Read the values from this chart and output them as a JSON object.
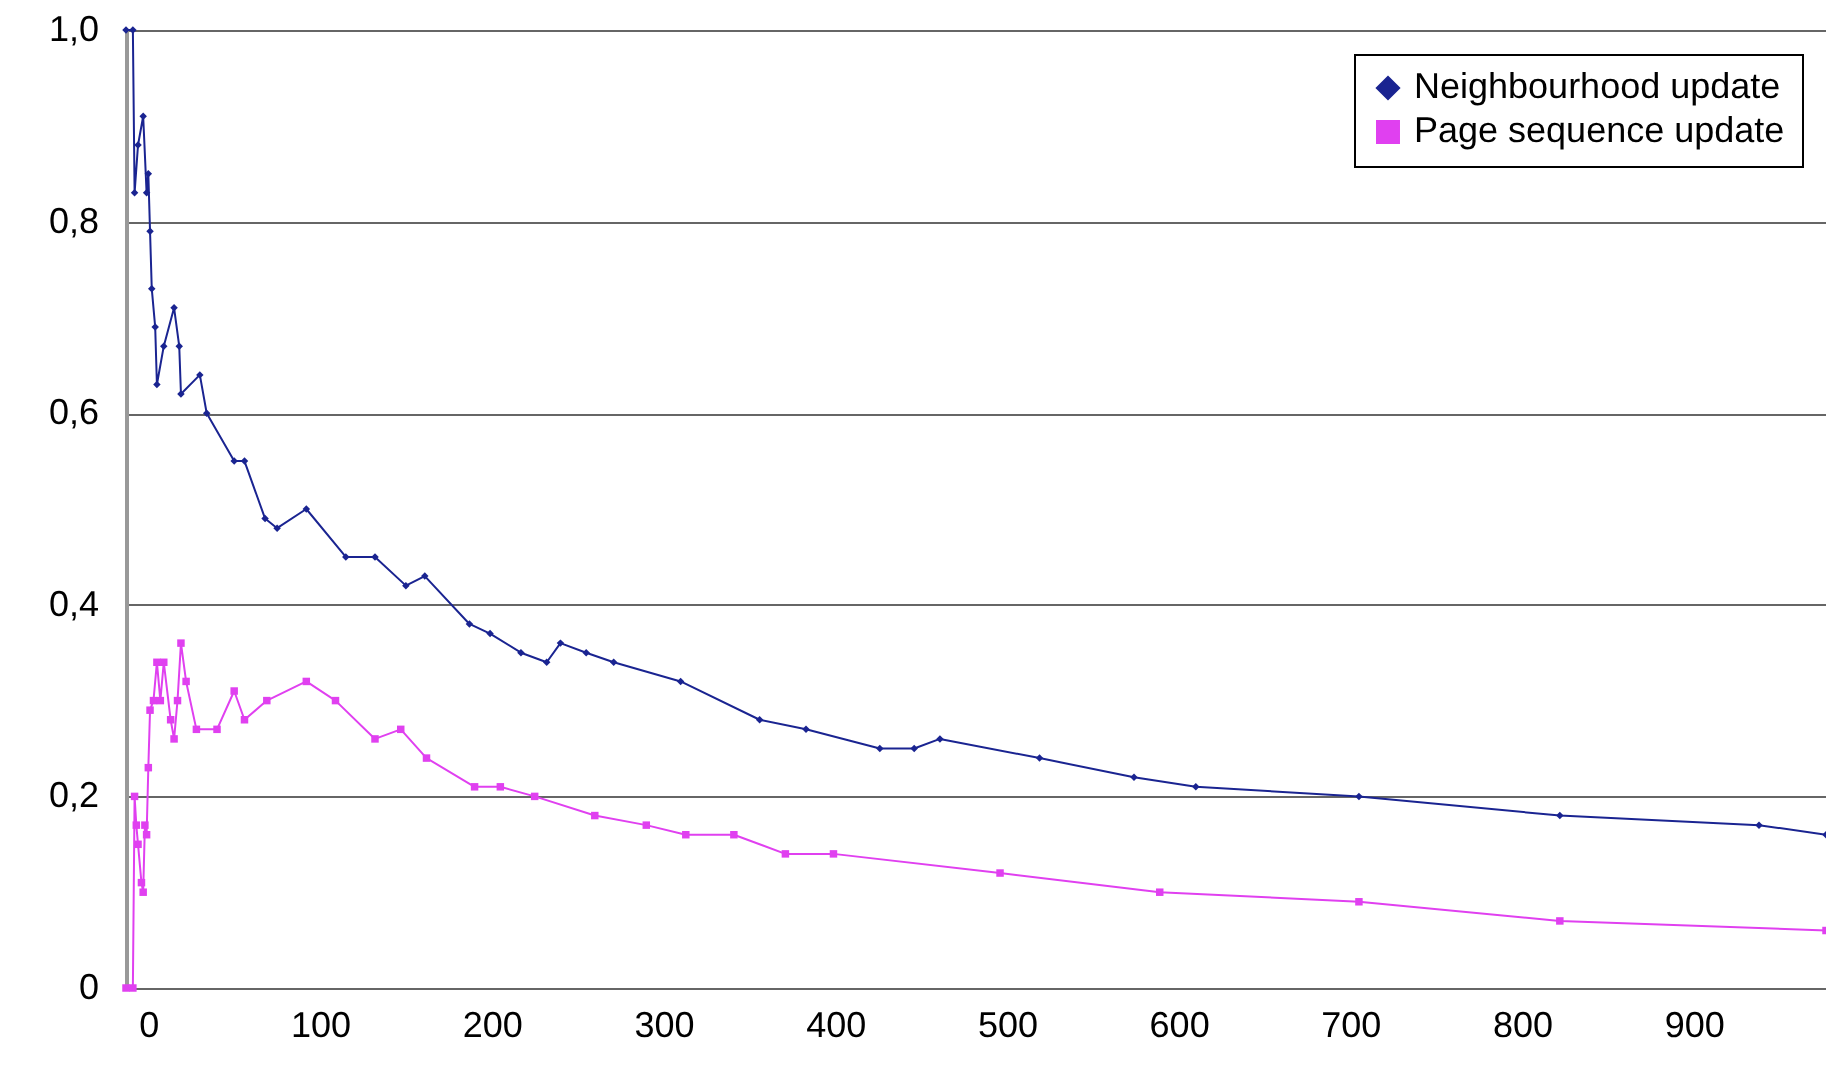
{
  "chart_data": {
    "type": "line",
    "xlim": [
      -13,
      977
    ],
    "xticks": [
      0,
      100,
      200,
      300,
      400,
      500,
      600,
      700,
      800,
      900
    ],
    "ylim": [
      0,
      1
    ],
    "yticks": [
      {
        "value": 0,
        "label": "0"
      },
      {
        "value": 0.2,
        "label": "0,2"
      },
      {
        "value": 0.4,
        "label": "0,4"
      },
      {
        "value": 0.6,
        "label": "0,6"
      },
      {
        "value": 0.8,
        "label": "0,8"
      },
      {
        "value": 1,
        "label": "1,0"
      }
    ],
    "grid": "y",
    "legend": "top right",
    "series": [
      {
        "name": "Neighbourhood update",
        "color": "#1a2491",
        "marker": "diamond",
        "x": [
          -13,
          -9,
          -8,
          -6,
          -3,
          -1,
          0,
          1,
          2,
          4,
          5,
          9,
          15,
          18,
          19,
          30,
          34,
          50,
          56,
          68,
          75,
          92,
          115,
          132,
          150,
          161,
          187,
          199,
          217,
          232,
          240,
          255,
          271,
          310,
          356,
          383,
          426,
          446,
          461,
          519,
          574,
          610,
          705,
          822,
          938,
          977
        ],
        "values": [
          1.0,
          1.0,
          0.83,
          0.88,
          0.91,
          0.83,
          0.85,
          0.79,
          0.73,
          0.69,
          0.63,
          0.67,
          0.71,
          0.67,
          0.62,
          0.64,
          0.6,
          0.55,
          0.55,
          0.49,
          0.48,
          0.5,
          0.45,
          0.45,
          0.42,
          0.43,
          0.38,
          0.37,
          0.35,
          0.34,
          0.36,
          0.35,
          0.34,
          0.32,
          0.28,
          0.27,
          0.25,
          0.25,
          0.26,
          0.24,
          0.22,
          0.21,
          0.2,
          0.18,
          0.17,
          0.16
        ]
      },
      {
        "name": "Page sequence update",
        "color": "#e040f0",
        "marker": "square",
        "x": [
          -13,
          -9,
          -8,
          -7,
          -6,
          -4,
          -3,
          -2,
          -1,
          0,
          1,
          3,
          5,
          7,
          9,
          13,
          15,
          17,
          19,
          22,
          28,
          40,
          50,
          56,
          69,
          92,
          109,
          132,
          147,
          162,
          190,
          205,
          225,
          260,
          290,
          313,
          341,
          371,
          399,
          496,
          589,
          705,
          822,
          977
        ],
        "values": [
          0,
          0,
          0.2,
          0.17,
          0.15,
          0.11,
          0.1,
          0.17,
          0.16,
          0.23,
          0.29,
          0.3,
          0.34,
          0.3,
          0.34,
          0.28,
          0.26,
          0.3,
          0.36,
          0.32,
          0.27,
          0.27,
          0.31,
          0.28,
          0.3,
          0.32,
          0.3,
          0.26,
          0.27,
          0.24,
          0.21,
          0.21,
          0.2,
          0.18,
          0.17,
          0.16,
          0.16,
          0.14,
          0.14,
          0.12,
          0.1,
          0.09,
          0.07,
          0.06
        ]
      }
    ]
  }
}
